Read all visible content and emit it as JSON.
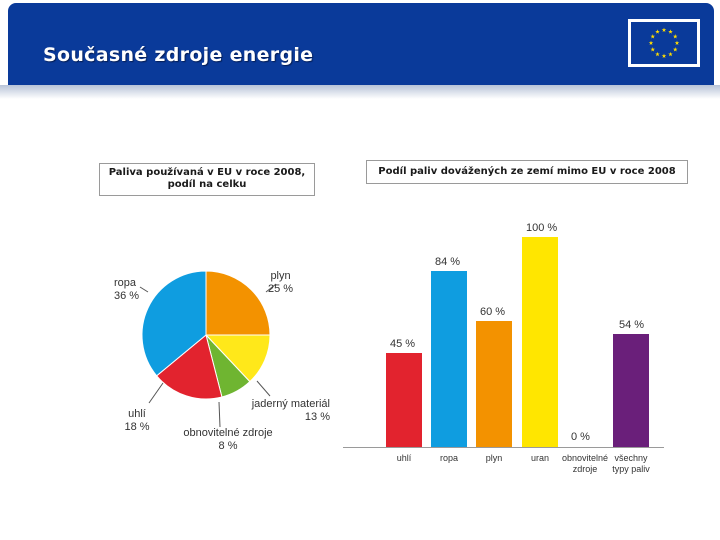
{
  "header": {
    "title": "Současné zdroje energie",
    "flag_color": "#0a3a9a",
    "star_color": "#ffdd00"
  },
  "chart_data": [
    {
      "type": "pie",
      "title": "Paliva používaná v EU v roce 2008, podíl na celku",
      "slices": [
        {
          "label": "plyn",
          "value": 25,
          "value_label": "25 %",
          "color": "#f39200"
        },
        {
          "label": "jaderný materiál",
          "value": 13,
          "value_label": "13 %",
          "color": "#ffe81a"
        },
        {
          "label": "obnovitelné zdroje",
          "value": 8,
          "value_label": "8 %",
          "color": "#6fb531"
        },
        {
          "label": "uhlí",
          "value": 18,
          "value_label": "18 %",
          "color": "#e2232e"
        },
        {
          "label": "ropa",
          "value": 36,
          "value_label": "36 %",
          "color": "#0f9de0"
        }
      ]
    },
    {
      "type": "bar",
      "title": "Podíl paliv dovážených ze zemí mimo EU v roce 2008",
      "categories": [
        "uhlí",
        "ropa",
        "plyn",
        "uran",
        "obnovitelné zdroje",
        "všechny typy paliv"
      ],
      "values": [
        45,
        84,
        60,
        100,
        0,
        54
      ],
      "value_labels": [
        "45 %",
        "84 %",
        "60 %",
        "100 %",
        "0 %",
        "54 %"
      ],
      "colors": [
        "#e2232e",
        "#0f9de0",
        "#f39200",
        "#ffe600",
        "#6fb531",
        "#6a1f7a"
      ],
      "ylim": [
        0,
        100
      ]
    }
  ]
}
